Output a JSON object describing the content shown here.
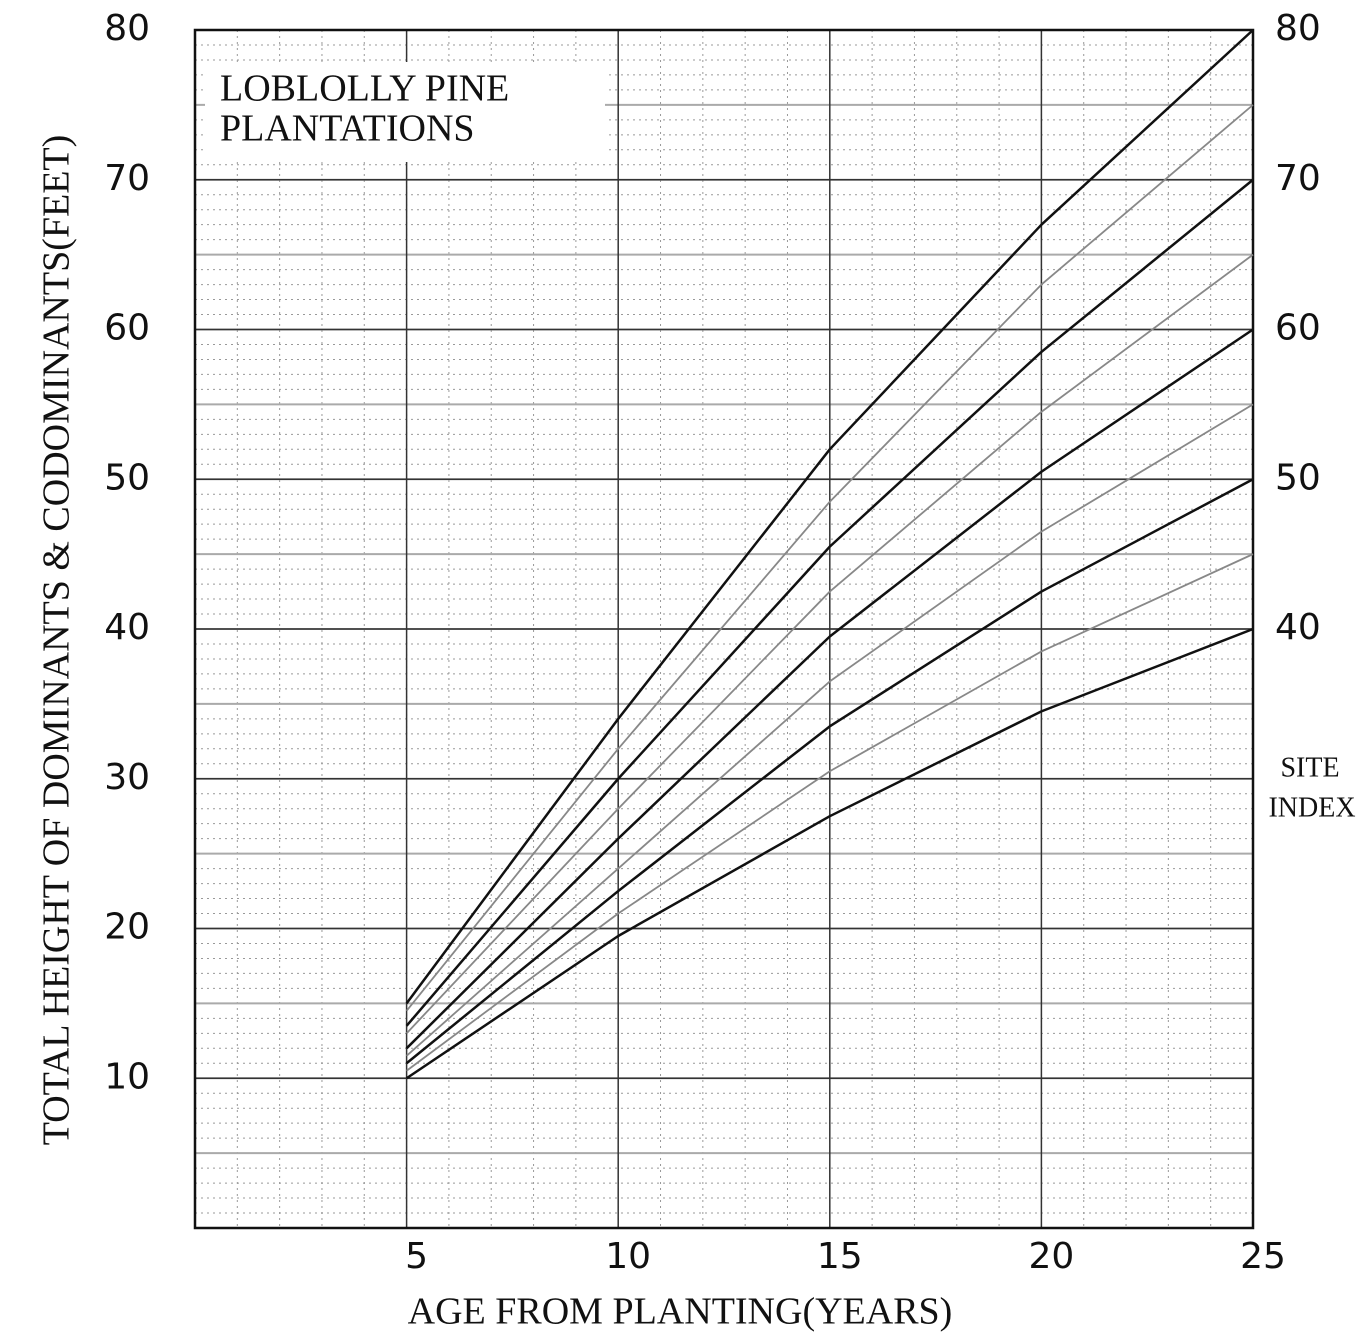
{
  "chart_data": {
    "type": "line",
    "title": [
      "LOBLOLLY PINE",
      "PLANTATIONS"
    ],
    "xlabel": "AGE FROM PLANTING(YEARS)",
    "ylabel": "TOTAL HEIGHT OF DOMINANTS & CODOMINANTS(FEET)",
    "y2label": [
      "SITE",
      "INDEX"
    ],
    "x": [
      5,
      10,
      15,
      20,
      25
    ],
    "series": [
      {
        "color": "#111111",
        "values": [
          15,
          34,
          52,
          67,
          80
        ]
      },
      {
        "color": "#888888",
        "values": [
          14.5,
          32,
          48.5,
          63,
          75
        ]
      },
      {
        "color": "#111111",
        "values": [
          13.5,
          30,
          45.5,
          58.5,
          70
        ]
      },
      {
        "color": "#888888",
        "values": [
          13,
          28,
          42.5,
          54.5,
          65
        ]
      },
      {
        "color": "#111111",
        "values": [
          12,
          26,
          39.5,
          50.5,
          60
        ]
      },
      {
        "color": "#888888",
        "values": [
          11.5,
          24,
          36.5,
          46.5,
          55
        ]
      },
      {
        "color": "#111111",
        "values": [
          11,
          22.5,
          33.5,
          42.5,
          50
        ]
      },
      {
        "color": "#888888",
        "values": [
          10.5,
          21,
          30.5,
          38.5,
          45
        ]
      },
      {
        "color": "#111111",
        "values": [
          10,
          19.5,
          27.5,
          34.5,
          40
        ]
      }
    ],
    "xlim": [
      0,
      25
    ],
    "xticks": [
      5,
      10,
      15,
      20,
      25
    ],
    "ylim": [
      0,
      80
    ],
    "yticks": [
      10,
      20,
      30,
      40,
      50,
      60,
      70,
      80
    ],
    "y2lim": [
      0,
      80
    ],
    "y2ticks": [
      40,
      50,
      60,
      70,
      80
    ],
    "grid": true
  }
}
